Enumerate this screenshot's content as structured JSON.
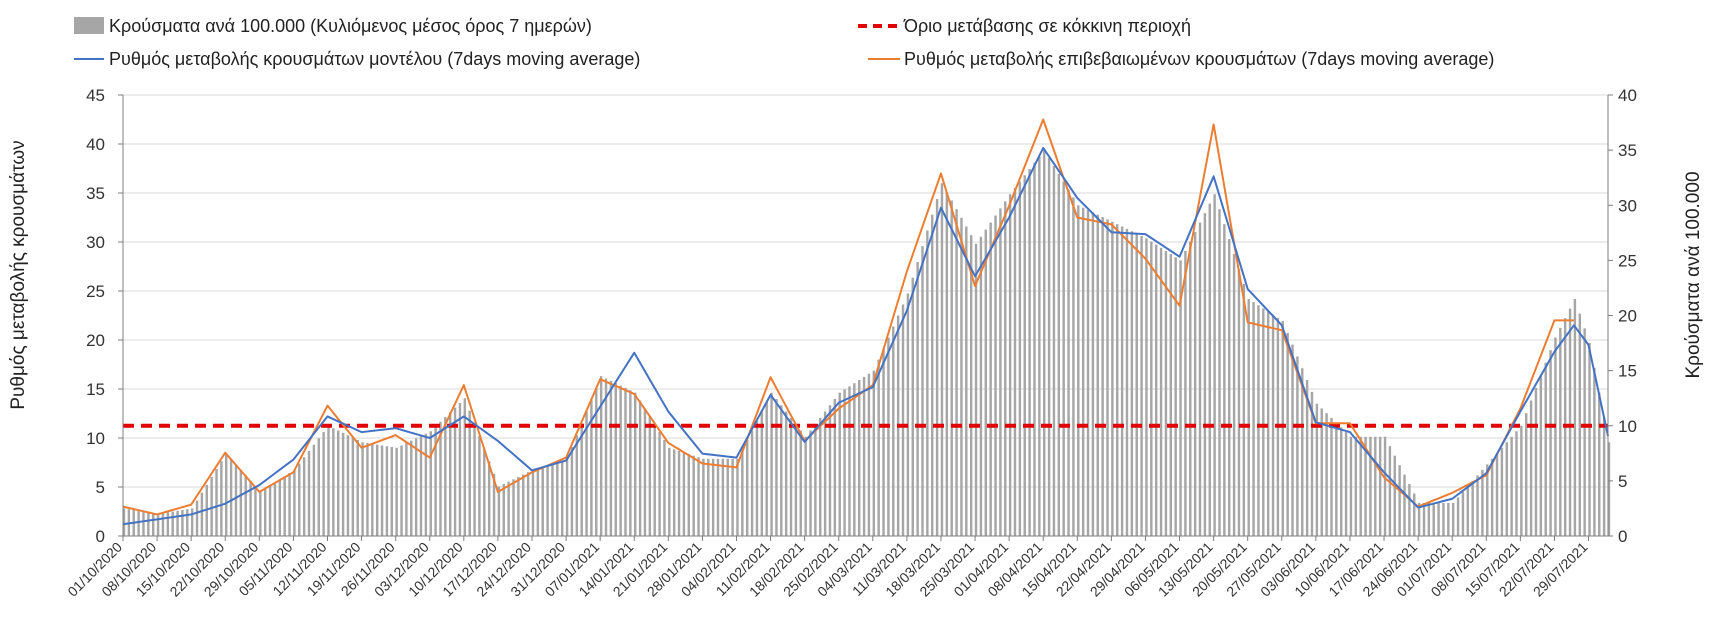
{
  "chart_data": {
    "type": "bar-line-combo",
    "legend": {
      "bars": "Κρούσματα ανά 100.000 (Κυλιόμενος μέσος όρος 7 ημερών)",
      "threshold": "Όριο μετάβασης σε κόκκινη περιοχή",
      "model": "Ρυθμός μεταβολής κρουσμάτων μοντέλου (7days moving average)",
      "confirmed": "Ρυθμός μεταβολής επιβεβαιωμένων κρουσμάτων (7days moving average)"
    },
    "ylabel_left": "Ρυθμός μεταβολής κρουσμάτων",
    "ylabel_right": "Κρούσματα ανά 100.000",
    "ylim_left": [
      0,
      45
    ],
    "ylim_right": [
      0,
      40
    ],
    "yticks_left": [
      "0",
      "5",
      "10",
      "15",
      "20",
      "25",
      "30",
      "35",
      "40",
      "45"
    ],
    "yticks_right": [
      "0",
      "5",
      "10",
      "15",
      "20",
      "25",
      "30",
      "35",
      "40"
    ],
    "x_start": "2020-10-01",
    "x_end": "2021-08-02",
    "date_labels": [
      "01/10/2020",
      "08/10/2020",
      "15/10/2020",
      "22/10/2020",
      "29/10/2020",
      "05/11/2020",
      "12/11/2020",
      "19/11/2020",
      "26/11/2020",
      "03/12/2020",
      "10/12/2020",
      "17/12/2020",
      "24/12/2020",
      "31/12/2020",
      "07/01/2021",
      "14/01/2021",
      "21/01/2021",
      "28/01/2021",
      "04/02/2021",
      "11/02/2021",
      "18/02/2021",
      "25/02/2021",
      "04/03/2021",
      "11/03/2021",
      "18/03/2021",
      "25/03/2021",
      "01/04/2021",
      "08/04/2021",
      "15/04/2021",
      "22/04/2021",
      "29/04/2021",
      "06/05/2021",
      "13/05/2021",
      "20/05/2021",
      "27/05/2021",
      "03/06/2021",
      "10/06/2021",
      "17/06/2021",
      "24/06/2021",
      "01/07/2021",
      "08/07/2021",
      "15/07/2021",
      "22/07/2021",
      "29/07/2021"
    ],
    "threshold_value": 10,
    "colors": {
      "bars": "#a6a6a6",
      "threshold": "#e00000",
      "model": "#4472c4",
      "confirmed": "#ed7d31",
      "grid": "#d9d9d9",
      "axis": "#7f7f7f"
    },
    "bars_per100k": {
      "x": [
        "2020-10-01",
        "2020-10-08",
        "2020-10-15",
        "2020-10-22",
        "2020-10-29",
        "2020-11-05",
        "2020-11-12",
        "2020-11-19",
        "2020-11-26",
        "2020-12-03",
        "2020-12-10",
        "2020-12-17",
        "2020-12-24",
        "2020-12-31",
        "2021-01-07",
        "2021-01-14",
        "2021-01-21",
        "2021-01-28",
        "2021-02-04",
        "2021-02-11",
        "2021-02-18",
        "2021-02-25",
        "2021-03-04",
        "2021-03-11",
        "2021-03-18",
        "2021-03-25",
        "2021-04-01",
        "2021-04-08",
        "2021-04-15",
        "2021-04-22",
        "2021-04-29",
        "2021-05-06",
        "2021-05-13",
        "2021-05-20",
        "2021-05-27",
        "2021-06-03",
        "2021-06-10",
        "2021-06-17",
        "2021-06-24",
        "2021-07-01",
        "2021-07-08",
        "2021-07-15",
        "2021-07-22",
        "2021-07-26",
        "2021-07-29",
        "2021-08-02"
      ],
      "values": [
        2.5,
        2.0,
        2.5,
        7.5,
        4.0,
        6.0,
        10.0,
        8.5,
        8.0,
        9.5,
        12.5,
        4.5,
        6.0,
        7.0,
        14.5,
        13.0,
        8.0,
        7.0,
        7.0,
        13.0,
        9.0,
        13.0,
        15.0,
        22.0,
        32.0,
        26.5,
        31.0,
        35.0,
        30.0,
        28.5,
        27.0,
        25.0,
        31.0,
        21.5,
        19.5,
        12.0,
        9.0,
        9.0,
        3.0,
        3.0,
        6.5,
        10.0,
        18.0,
        21.5,
        17.5,
        8.5
      ]
    },
    "model_rate": {
      "x": [
        "2020-10-01",
        "2020-10-08",
        "2020-10-15",
        "2020-10-22",
        "2020-10-29",
        "2020-11-05",
        "2020-11-12",
        "2020-11-19",
        "2020-11-26",
        "2020-12-03",
        "2020-12-10",
        "2020-12-17",
        "2020-12-24",
        "2020-12-31",
        "2021-01-07",
        "2021-01-14",
        "2021-01-21",
        "2021-01-28",
        "2021-02-04",
        "2021-02-11",
        "2021-02-18",
        "2021-02-25",
        "2021-03-04",
        "2021-03-11",
        "2021-03-18",
        "2021-03-25",
        "2021-04-01",
        "2021-04-08",
        "2021-04-15",
        "2021-04-22",
        "2021-04-29",
        "2021-05-06",
        "2021-05-13",
        "2021-05-20",
        "2021-05-27",
        "2021-06-03",
        "2021-06-10",
        "2021-06-17",
        "2021-06-24",
        "2021-07-01",
        "2021-07-08",
        "2021-07-15",
        "2021-07-22",
        "2021-07-26",
        "2021-07-29",
        "2021-08-02"
      ],
      "values": [
        1.2,
        1.7,
        2.2,
        3.3,
        5.2,
        7.8,
        12.2,
        10.6,
        11.0,
        10.0,
        12.2,
        9.7,
        6.7,
        7.7,
        13.2,
        18.7,
        12.7,
        8.4,
        8.0,
        14.4,
        9.6,
        13.6,
        15.2,
        23.0,
        33.5,
        26.5,
        32.5,
        39.6,
        34.5,
        31.0,
        30.8,
        28.5,
        36.7,
        25.2,
        21.5,
        11.6,
        10.6,
        6.5,
        2.9,
        3.8,
        6.4,
        12.7,
        18.8,
        21.5,
        19.5,
        10.2
      ]
    },
    "confirmed_rate": {
      "x": [
        "2020-10-01",
        "2020-10-08",
        "2020-10-15",
        "2020-10-22",
        "2020-10-29",
        "2020-11-05",
        "2020-11-12",
        "2020-11-19",
        "2020-11-26",
        "2020-12-03",
        "2020-12-10",
        "2020-12-17",
        "2020-12-24",
        "2020-12-31",
        "2021-01-07",
        "2021-01-14",
        "2021-01-21",
        "2021-01-28",
        "2021-02-04",
        "2021-02-11",
        "2021-02-18",
        "2021-02-25",
        "2021-03-04",
        "2021-03-11",
        "2021-03-18",
        "2021-03-25",
        "2021-04-01",
        "2021-04-08",
        "2021-04-15",
        "2021-04-22",
        "2021-04-29",
        "2021-05-06",
        "2021-05-13",
        "2021-05-20",
        "2021-05-27",
        "2021-06-03",
        "2021-06-10",
        "2021-06-17",
        "2021-06-24",
        "2021-07-01",
        "2021-07-08",
        "2021-07-15",
        "2021-07-22",
        "2021-07-26"
      ],
      "values": [
        3.0,
        2.2,
        3.2,
        8.5,
        4.5,
        6.5,
        13.3,
        9.0,
        10.3,
        8.0,
        15.4,
        4.5,
        6.5,
        8.0,
        16.0,
        14.5,
        9.5,
        7.4,
        7.0,
        16.2,
        9.7,
        13.0,
        15.4,
        27.0,
        37.0,
        25.5,
        33.7,
        42.5,
        32.5,
        31.8,
        28.3,
        23.5,
        42.0,
        21.8,
        21.0,
        11.5,
        11.5,
        6.0,
        3.0,
        4.4,
        6.2,
        13.0,
        22.0,
        22.0
      ]
    }
  }
}
